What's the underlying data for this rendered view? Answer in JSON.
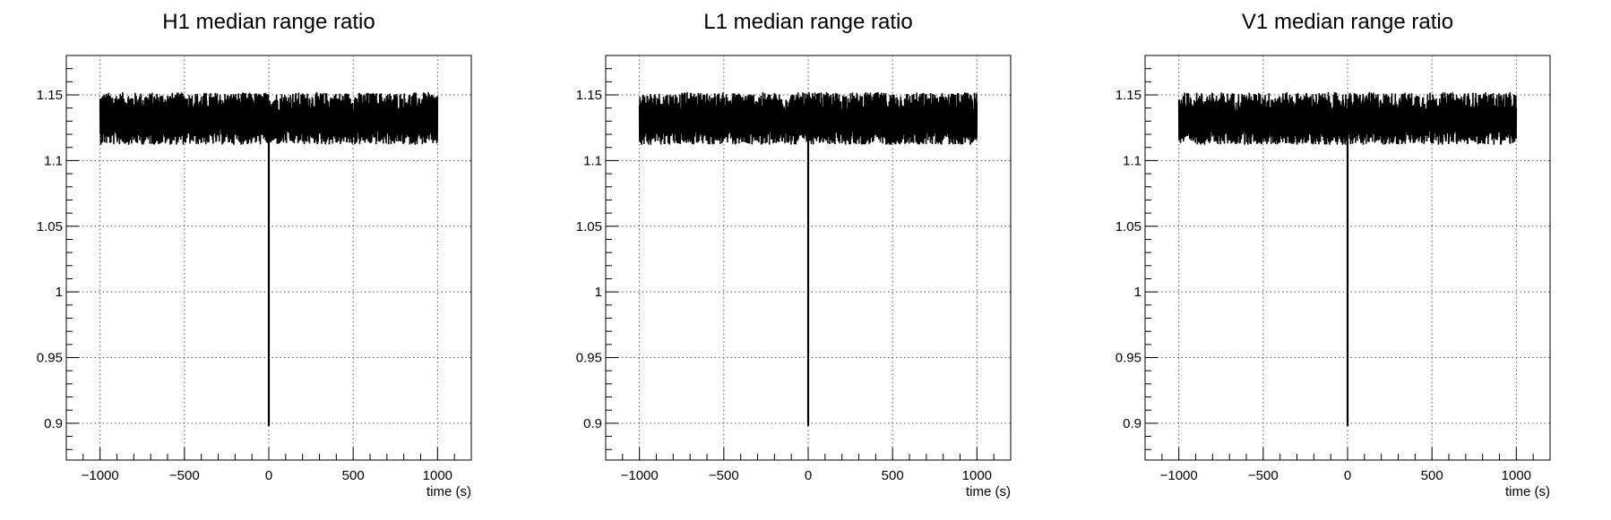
{
  "chart_data": [
    {
      "type": "line",
      "title": "H1 median range ratio",
      "xlabel": "time (s)",
      "ylabel": "",
      "xlim": [
        -1200,
        1200
      ],
      "ylim": [
        0.872,
        1.18
      ],
      "xticks": [
        -1000,
        -500,
        0,
        500,
        1000
      ],
      "xtick_labels": [
        "−1000",
        "−500",
        "0",
        "500",
        "1000"
      ],
      "yticks": [
        0.9,
        0.95,
        1,
        1.05,
        1.1,
        1.15
      ],
      "ytick_labels": [
        "0.9",
        "0.95",
        "1",
        "1.05",
        "1.1",
        "1.15"
      ],
      "grid": true,
      "series": [
        {
          "x_range": [
            -1000,
            1000
          ],
          "baseline": 1.13,
          "noise_band": [
            1.112,
            1.152
          ],
          "dip": {
            "x": 0,
            "value": 0.898
          },
          "color": "#000000"
        }
      ]
    },
    {
      "type": "line",
      "title": "L1 median range ratio",
      "xlabel": "time (s)",
      "ylabel": "",
      "xlim": [
        -1200,
        1200
      ],
      "ylim": [
        0.872,
        1.18
      ],
      "xticks": [
        -1000,
        -500,
        0,
        500,
        1000
      ],
      "xtick_labels": [
        "−1000",
        "−500",
        "0",
        "500",
        "1000"
      ],
      "yticks": [
        0.9,
        0.95,
        1,
        1.05,
        1.1,
        1.15
      ],
      "ytick_labels": [
        "0.9",
        "0.95",
        "1",
        "1.05",
        "1.1",
        "1.15"
      ],
      "grid": true,
      "series": [
        {
          "x_range": [
            -1000,
            1000
          ],
          "baseline": 1.13,
          "noise_band": [
            1.112,
            1.152
          ],
          "dip": {
            "x": 0,
            "value": 0.898
          },
          "color": "#000000"
        }
      ]
    },
    {
      "type": "line",
      "title": "V1 median range ratio",
      "xlabel": "time (s)",
      "ylabel": "",
      "xlim": [
        -1200,
        1200
      ],
      "ylim": [
        0.872,
        1.18
      ],
      "xticks": [
        -1000,
        -500,
        0,
        500,
        1000
      ],
      "xtick_labels": [
        "−1000",
        "−500",
        "0",
        "500",
        "1000"
      ],
      "yticks": [
        0.9,
        0.95,
        1,
        1.05,
        1.1,
        1.15
      ],
      "ytick_labels": [
        "0.9",
        "0.95",
        "1",
        "1.05",
        "1.1",
        "1.15"
      ],
      "grid": true,
      "series": [
        {
          "x_range": [
            -1000,
            1000
          ],
          "baseline": 1.13,
          "noise_band": [
            1.112,
            1.152
          ],
          "dip": {
            "x": 0,
            "value": 0.898
          },
          "color": "#000000"
        }
      ]
    }
  ]
}
